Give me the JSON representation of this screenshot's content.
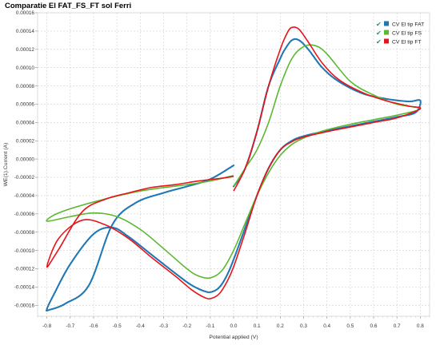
{
  "chart_data": {
    "type": "line",
    "title": "Comparatie El FAT_FS_FT sol Ferri",
    "xlabel": "Potential applied (V)",
    "ylabel": "WE(1).Current (A)",
    "xlim": [
      -0.84,
      0.84
    ],
    "ylim": [
      -0.000172,
      0.00016
    ],
    "x_ticks": [
      -0.8,
      -0.7,
      -0.6,
      -0.5,
      -0.4,
      -0.3,
      -0.2,
      -0.1,
      0.0,
      0.1,
      0.2,
      0.3,
      0.4,
      0.5,
      0.6,
      0.7,
      0.8
    ],
    "x_tick_labels": [
      "-0.8",
      "-0.7",
      "-0.6",
      "-0.5",
      "-0.4",
      "-0.3",
      "-0.2",
      "-0.1",
      "0.0",
      "0.1",
      "0.2",
      "0.3",
      "0.4",
      "0.5",
      "0.6",
      "0.7",
      "0.8"
    ],
    "y_ticks": [
      0.00016,
      0.00014,
      0.00012,
      0.0001,
      8e-05,
      6e-05,
      4e-05,
      2e-05,
      0,
      -2e-05,
      -4e-05,
      -6e-05,
      -8e-05,
      -0.0001,
      -0.00012,
      -0.00014,
      -0.00016
    ],
    "y_tick_labels": [
      "0.00016",
      "0.00014",
      "0.00012",
      "0.00010",
      "0.00008",
      "0.00006",
      "0.00004",
      "0.00002",
      "0.00000",
      "-0.00002",
      "-0.00004",
      "-0.00006",
      "-0.00008",
      "-0.00010",
      "-0.00012",
      "-0.00014",
      "-0.00016"
    ],
    "grid": true,
    "legend_position": "top-right",
    "series": [
      {
        "name": "CV El tip FAT",
        "color": "#1f77b4",
        "style": "dots",
        "x": [
          0.0,
          0.05,
          0.1,
          0.15,
          0.2,
          0.22,
          0.25,
          0.28,
          0.32,
          0.38,
          0.45,
          0.55,
          0.65,
          0.75,
          0.8,
          0.78,
          0.7,
          0.6,
          0.5,
          0.4,
          0.3,
          0.25,
          0.2,
          0.15,
          0.1,
          0.05,
          0.0,
          -0.03,
          -0.06,
          -0.09,
          -0.12,
          -0.18,
          -0.25,
          -0.35,
          -0.45,
          -0.52,
          -0.6,
          -0.7,
          -0.77,
          -0.8,
          -0.79,
          -0.72,
          -0.62,
          -0.52,
          -0.42,
          -0.3,
          -0.2,
          -0.1,
          0.0
        ],
        "y": [
          -3e-05,
          -1e-05,
          3e-05,
          8e-05,
          0.00011,
          0.00012,
          0.00013,
          0.00013,
          0.00012,
          0.0001,
          8.5e-05,
          7.2e-05,
          6.6e-05,
          6.3e-05,
          6.4e-05,
          5.1e-05,
          4.6e-05,
          4.1e-05,
          3.6e-05,
          3.1e-05,
          2.5e-05,
          2e-05,
          1e-05,
          -1e-05,
          -4e-05,
          -7.5e-05,
          -0.00011,
          -0.000128,
          -0.00014,
          -0.000145,
          -0.000145,
          -0.000138,
          -0.000125,
          -0.000105,
          -8.5e-05,
          -7.5e-05,
          -8.2e-05,
          -0.000115,
          -0.000148,
          -0.000164,
          -0.000165,
          -0.000158,
          -0.000138,
          -7.2e-05,
          -4.8e-05,
          -3.7e-05,
          -3e-05,
          -2.2e-05,
          -7e-06
        ]
      },
      {
        "name": "CV El tip FS",
        "color": "#5bb830",
        "style": "line",
        "x": [
          0.0,
          0.05,
          0.1,
          0.15,
          0.2,
          0.25,
          0.3,
          0.35,
          0.4,
          0.5,
          0.6,
          0.7,
          0.8,
          0.7,
          0.6,
          0.5,
          0.4,
          0.35,
          0.3,
          0.25,
          0.2,
          0.15,
          0.1,
          0.05,
          0.0,
          -0.05,
          -0.1,
          -0.15,
          -0.2,
          -0.3,
          -0.4,
          -0.5,
          -0.6,
          -0.7,
          -0.8,
          -0.75,
          -0.6,
          -0.4,
          -0.2,
          -0.1,
          0.0
        ],
        "y": [
          -3e-05,
          -1e-05,
          1e-05,
          4e-05,
          8e-05,
          0.00011,
          0.000123,
          0.000124,
          0.000115,
          8.5e-05,
          7e-05,
          6e-05,
          5.5e-05,
          4.8e-05,
          4.3e-05,
          3.8e-05,
          3.2e-05,
          2.8e-05,
          2.3e-05,
          1.6e-05,
          4e-06,
          -1.5e-05,
          -4e-05,
          -7e-05,
          -0.0001,
          -0.000122,
          -0.00013,
          -0.000128,
          -0.00012,
          -9.8e-05,
          -7.7e-05,
          -6.3e-05,
          -5.9e-05,
          -6.3e-05,
          -6.8e-05,
          -5.9e-05,
          -4.7e-05,
          -3.5e-05,
          -2.8e-05,
          -2.4e-05,
          -1.8e-05
        ]
      },
      {
        "name": "CV El tip FT",
        "color": "#e8141a",
        "style": "line",
        "x": [
          0.0,
          0.05,
          0.1,
          0.15,
          0.2,
          0.23,
          0.25,
          0.28,
          0.32,
          0.38,
          0.45,
          0.55,
          0.65,
          0.75,
          0.8,
          0.7,
          0.6,
          0.5,
          0.4,
          0.3,
          0.25,
          0.2,
          0.15,
          0.1,
          0.05,
          0.0,
          -0.03,
          -0.06,
          -0.09,
          -0.12,
          -0.18,
          -0.25,
          -0.35,
          -0.45,
          -0.55,
          -0.65,
          -0.75,
          -0.8,
          -0.75,
          -0.65,
          -0.55,
          -0.45,
          -0.35,
          -0.25,
          -0.15,
          -0.05,
          0.0
        ],
        "y": [
          -3.5e-05,
          -1e-05,
          3e-05,
          8e-05,
          0.00012,
          0.000138,
          0.000144,
          0.000142,
          0.000128,
          0.000105,
          8.7e-05,
          7.3e-05,
          6.4e-05,
          5.8e-05,
          5.5e-05,
          4.5e-05,
          4e-05,
          3.5e-05,
          3e-05,
          2.4e-05,
          1.9e-05,
          1e-05,
          -1e-05,
          -4e-05,
          -8e-05,
          -0.000118,
          -0.000135,
          -0.000147,
          -0.000152,
          -0.000152,
          -0.000143,
          -0.000128,
          -0.000108,
          -8.7e-05,
          -7.2e-05,
          -6.7e-05,
          -8.7e-05,
          -0.000118,
          -9.9e-05,
          -5.8e-05,
          -4.4e-05,
          -3.7e-05,
          -3.1e-05,
          -2.8e-05,
          -2.4e-05,
          -2.1e-05,
          -1.9e-05
        ]
      }
    ]
  }
}
